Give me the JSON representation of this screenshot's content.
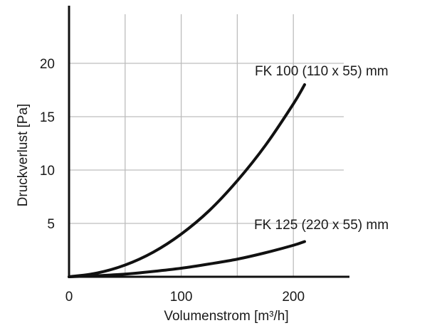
{
  "chart_data": {
    "type": "line",
    "xlabel": "Volumenstrom [m³/h]",
    "ylabel": "Druckverlust [Pa]",
    "xlim": [
      0,
      250
    ],
    "ylim": [
      0,
      25
    ],
    "xticks": [
      0,
      100,
      200
    ],
    "xtick_labels": [
      "0",
      "100",
      "200"
    ],
    "xgrid": [
      50,
      100,
      150,
      200
    ],
    "yticks": [
      5,
      10,
      15,
      20
    ],
    "ytick_labels": [
      "5",
      "10",
      "15",
      "20"
    ],
    "grid": true,
    "series": [
      {
        "name": "FK 100 (110 x 55) mm",
        "x": [
          0,
          25,
          50,
          75,
          100,
          125,
          150,
          175,
          200,
          210
        ],
        "y": [
          0,
          0.35,
          1.1,
          2.3,
          4.0,
          6.2,
          9.0,
          12.3,
          16.2,
          18.0
        ]
      },
      {
        "name": "FK 125 (220 x 55) mm",
        "x": [
          0,
          25,
          50,
          75,
          100,
          125,
          150,
          175,
          200,
          210
        ],
        "y": [
          0,
          0.1,
          0.25,
          0.5,
          0.8,
          1.2,
          1.65,
          2.25,
          2.95,
          3.3
        ]
      }
    ],
    "colors": {
      "line": "#111111",
      "grid": "#bdbdbd",
      "axis": "#111111"
    }
  }
}
